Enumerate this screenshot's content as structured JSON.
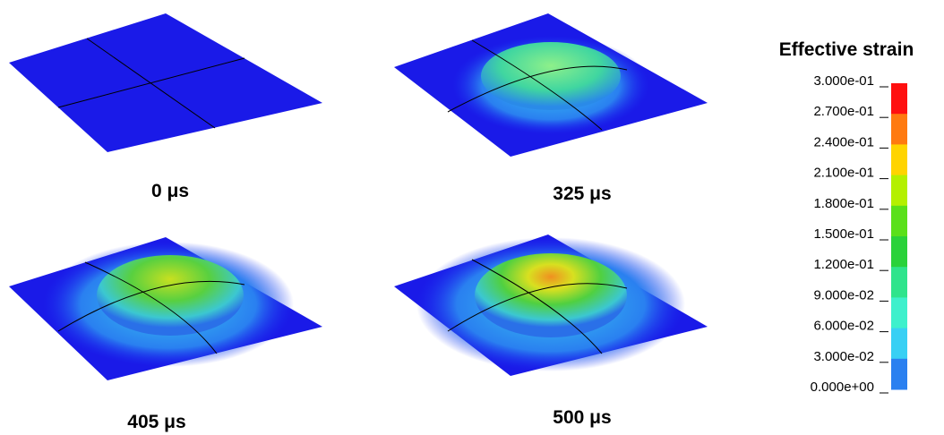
{
  "panels": [
    {
      "label": "0 μs"
    },
    {
      "label": "325 μs"
    },
    {
      "label": "405 μs"
    },
    {
      "label": "500 μs"
    }
  ],
  "legend": {
    "title": "Effective strain",
    "labels": [
      "3.000e-01",
      "2.700e-01",
      "2.400e-01",
      "2.100e-01",
      "1.800e-01",
      "1.500e-01",
      "1.200e-01",
      "9.000e-02",
      "6.000e-02",
      "3.000e-02",
      "0.000e+00"
    ],
    "colors": [
      "#ff1010",
      "#ff7a10",
      "#ffd400",
      "#b4f000",
      "#5ae01a",
      "#2ad23a",
      "#2fe48c",
      "#3ef0cc",
      "#38d0f4",
      "#2a80f0",
      "#1010f0"
    ]
  }
}
